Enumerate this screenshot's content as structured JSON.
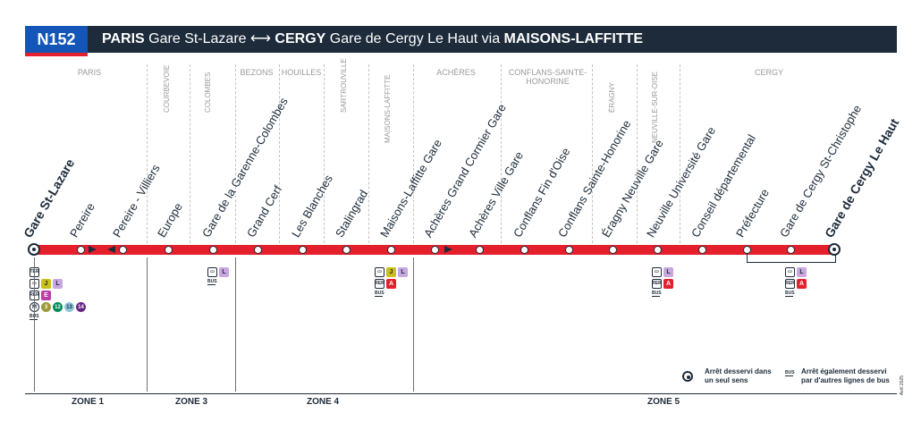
{
  "header": {
    "line_code": "N152",
    "title_origin_city": "PARIS",
    "title_origin_stop": "Gare St-Lazare",
    "title_arrow": "⟷",
    "title_dest_city": "CERGY",
    "title_dest_stop": "Gare de Cergy Le Haut",
    "title_via": "via",
    "title_via_city": "MAISONS-LAFFITTE",
    "badge_color": "#1356b8",
    "bar_color": "#1d2b3a",
    "line_color": "#e4202c"
  },
  "communes": [
    "PARIS",
    "COURBEVOIE",
    "COLOMBES",
    "BEZONS",
    "HOUILLES",
    "SARTROUVILLE",
    "MAISONS-LAFFITTE",
    "ACHÈRES",
    "CONFLANS-SAINTE-HONORINE",
    "ÉRAGNY",
    "NEUVILLE-SUR-OISE",
    "CERGY"
  ],
  "stops": [
    {
      "name": "Gare St-Lazare",
      "terminus": true
    },
    {
      "name": "Pereire"
    },
    {
      "name": "Pereire - Villiers"
    },
    {
      "name": "Europe"
    },
    {
      "name": "Gare de la Garenne-Colombes"
    },
    {
      "name": "Grand Cerf"
    },
    {
      "name": "Les Blanches"
    },
    {
      "name": "Stalingrad"
    },
    {
      "name": "Maisons-Laffitte Gare"
    },
    {
      "name": "Achères Grand Cormier Gare"
    },
    {
      "name": "Achères Ville Gare"
    },
    {
      "name": "Conflans Fin d'Oise"
    },
    {
      "name": "Conflans Sainte-Honorine"
    },
    {
      "name": "Éragny Neuville Gare"
    },
    {
      "name": "Neuville Université Gare"
    },
    {
      "name": "Conseil départemental"
    },
    {
      "name": "Préfecture"
    },
    {
      "name": "Gare de Cergy St-Christophe"
    },
    {
      "name": "Gare de Cergy Le Haut",
      "terminus": true
    }
  ],
  "connections": {
    "ter": "TER",
    "rer": "RER",
    "bus": "BUS",
    "metro": "M",
    "train_j": "J",
    "train_l": "L",
    "rer_e": "E",
    "rer_a": "A",
    "metro_lines": [
      "3",
      "12",
      "13",
      "14"
    ]
  },
  "zones": [
    "ZONE 1",
    "ZONE 3",
    "ZONE 4",
    "ZONE 5"
  ],
  "legend": {
    "one_way_line1": "Arrêt desservi dans",
    "one_way_line2": "un seul sens",
    "other_bus_line1": "Arrêt également desservi",
    "other_bus_line2": "par d'autres lignes de bus"
  },
  "edition": "Avril 2025"
}
